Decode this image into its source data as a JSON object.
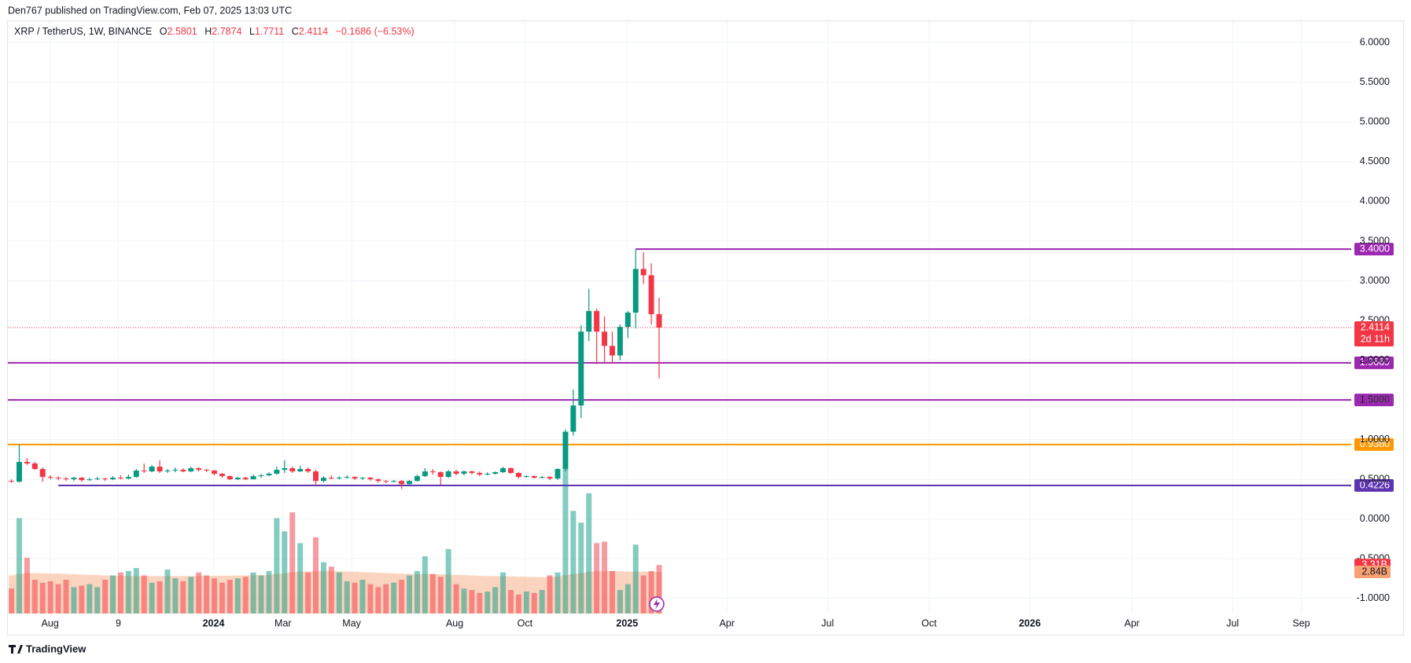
{
  "header": "Den767 published on TradingView.com, Feb 07, 2025 13:03 UTC",
  "brand": "TradingView",
  "chart_data": {
    "type": "candlestick",
    "symbol": "XRP / TetherUS, 1W, BINANCE",
    "ohlc_letters": [
      "O",
      "H",
      "L",
      "C"
    ],
    "change": "−0.1686 (−6.53%)",
    "countdown": "2d 11h",
    "up_color": "#089981",
    "down_color": "#f23645",
    "candles": [
      [
        0.48,
        0.5,
        0.46,
        0.47
      ],
      [
        0.47,
        0.94,
        0.46,
        0.72
      ],
      [
        0.72,
        0.77,
        0.68,
        0.7
      ],
      [
        0.7,
        0.72,
        0.62,
        0.63
      ],
      [
        0.63,
        0.65,
        0.47,
        0.53
      ],
      [
        0.53,
        0.55,
        0.5,
        0.52
      ],
      [
        0.52,
        0.54,
        0.49,
        0.51
      ],
      [
        0.51,
        0.53,
        0.48,
        0.5
      ],
      [
        0.5,
        0.53,
        0.48,
        0.52
      ],
      [
        0.52,
        0.53,
        0.47,
        0.49
      ],
      [
        0.49,
        0.52,
        0.48,
        0.5
      ],
      [
        0.5,
        0.53,
        0.49,
        0.51
      ],
      [
        0.51,
        0.52,
        0.48,
        0.5
      ],
      [
        0.5,
        0.54,
        0.49,
        0.52
      ],
      [
        0.52,
        0.55,
        0.5,
        0.51
      ],
      [
        0.51,
        0.56,
        0.5,
        0.53
      ],
      [
        0.53,
        0.63,
        0.52,
        0.61
      ],
      [
        0.61,
        0.7,
        0.58,
        0.6
      ],
      [
        0.6,
        0.68,
        0.59,
        0.66
      ],
      [
        0.66,
        0.74,
        0.58,
        0.6
      ],
      [
        0.6,
        0.63,
        0.58,
        0.61
      ],
      [
        0.61,
        0.65,
        0.59,
        0.62
      ],
      [
        0.62,
        0.64,
        0.59,
        0.6
      ],
      [
        0.6,
        0.66,
        0.59,
        0.64
      ],
      [
        0.64,
        0.65,
        0.6,
        0.62
      ],
      [
        0.62,
        0.63,
        0.59,
        0.61
      ],
      [
        0.61,
        0.62,
        0.55,
        0.57
      ],
      [
        0.57,
        0.58,
        0.52,
        0.54
      ],
      [
        0.54,
        0.55,
        0.49,
        0.5
      ],
      [
        0.5,
        0.53,
        0.49,
        0.52
      ],
      [
        0.52,
        0.53,
        0.49,
        0.5
      ],
      [
        0.5,
        0.56,
        0.5,
        0.54
      ],
      [
        0.54,
        0.57,
        0.52,
        0.55
      ],
      [
        0.55,
        0.59,
        0.54,
        0.57
      ],
      [
        0.57,
        0.66,
        0.56,
        0.62
      ],
      [
        0.62,
        0.74,
        0.58,
        0.64
      ],
      [
        0.64,
        0.66,
        0.58,
        0.6
      ],
      [
        0.6,
        0.67,
        0.59,
        0.63
      ],
      [
        0.63,
        0.65,
        0.58,
        0.6
      ],
      [
        0.6,
        0.62,
        0.42,
        0.48
      ],
      [
        0.48,
        0.54,
        0.46,
        0.52
      ],
      [
        0.52,
        0.55,
        0.5,
        0.51
      ],
      [
        0.51,
        0.54,
        0.5,
        0.52
      ],
      [
        0.52,
        0.55,
        0.51,
        0.53
      ],
      [
        0.53,
        0.54,
        0.49,
        0.51
      ],
      [
        0.51,
        0.53,
        0.49,
        0.52
      ],
      [
        0.52,
        0.53,
        0.48,
        0.5
      ],
      [
        0.5,
        0.51,
        0.46,
        0.48
      ],
      [
        0.48,
        0.49,
        0.45,
        0.47
      ],
      [
        0.47,
        0.49,
        0.46,
        0.48
      ],
      [
        0.48,
        0.49,
        0.38,
        0.44
      ],
      [
        0.44,
        0.49,
        0.43,
        0.48
      ],
      [
        0.48,
        0.56,
        0.47,
        0.54
      ],
      [
        0.54,
        0.64,
        0.53,
        0.6
      ],
      [
        0.6,
        0.63,
        0.56,
        0.59
      ],
      [
        0.59,
        0.6,
        0.43,
        0.53
      ],
      [
        0.53,
        0.62,
        0.52,
        0.6
      ],
      [
        0.6,
        0.62,
        0.55,
        0.57
      ],
      [
        0.57,
        0.61,
        0.55,
        0.6
      ],
      [
        0.6,
        0.61,
        0.56,
        0.58
      ],
      [
        0.58,
        0.6,
        0.54,
        0.56
      ],
      [
        0.56,
        0.59,
        0.55,
        0.57
      ],
      [
        0.57,
        0.6,
        0.56,
        0.59
      ],
      [
        0.59,
        0.66,
        0.58,
        0.64
      ],
      [
        0.64,
        0.65,
        0.57,
        0.58
      ],
      [
        0.58,
        0.59,
        0.51,
        0.53
      ],
      [
        0.53,
        0.55,
        0.52,
        0.54
      ],
      [
        0.54,
        0.55,
        0.51,
        0.52
      ],
      [
        0.52,
        0.54,
        0.51,
        0.53
      ],
      [
        0.53,
        0.54,
        0.49,
        0.51
      ],
      [
        0.51,
        0.64,
        0.49,
        0.63
      ],
      [
        0.63,
        1.13,
        0.6,
        1.1
      ],
      [
        1.1,
        1.63,
        1.05,
        1.43
      ],
      [
        1.43,
        2.44,
        1.27,
        2.36
      ],
      [
        2.36,
        2.9,
        2.24,
        2.62
      ],
      [
        2.62,
        2.65,
        1.95,
        2.36
      ],
      [
        2.36,
        2.55,
        1.96,
        2.18
      ],
      [
        2.18,
        2.36,
        1.96,
        2.06
      ],
      [
        2.06,
        2.45,
        2.0,
        2.42
      ],
      [
        2.42,
        2.62,
        2.28,
        2.6
      ],
      [
        2.6,
        3.4,
        2.4,
        3.15
      ],
      [
        3.15,
        3.36,
        2.96,
        3.07
      ],
      [
        3.07,
        3.22,
        2.45,
        2.58
      ],
      [
        2.5801,
        2.7874,
        1.7711,
        2.4114
      ]
    ],
    "volume": {
      "values": [
        1.7,
        6.5,
        3.8,
        2.3,
        2.1,
        2.2,
        2.0,
        2.3,
        1.8,
        1.9,
        2.0,
        1.8,
        2.3,
        2.6,
        2.8,
        2.9,
        3.1,
        2.6,
        2.1,
        2.2,
        3.0,
        2.4,
        2.2,
        2.5,
        2.8,
        2.6,
        2.4,
        2.1,
        2.3,
        2.4,
        2.5,
        2.8,
        2.6,
        2.9,
        6.5,
        5.6,
        6.9,
        4.8,
        2.8,
        5.2,
        3.5,
        3.2,
        2.8,
        2.2,
        2.1,
        2.3,
        2.0,
        1.8,
        2.0,
        2.1,
        2.3,
        2.6,
        2.9,
        3.9,
        2.7,
        2.5,
        4.4,
        2.0,
        1.7,
        1.6,
        1.4,
        1.5,
        1.8,
        2.8,
        1.6,
        1.3,
        1.5,
        1.4,
        1.6,
        2.6,
        2.8,
        9.9,
        7.0,
        6.2,
        8.2,
        4.8,
        4.9,
        2.9,
        1.6,
        2.0,
        4.7,
        2.6,
        2.9,
        3.31
      ],
      "value_label": "3.31B"
    },
    "volume_ma": {
      "color": "#f7a072",
      "values": [
        2.6,
        2.7,
        2.75,
        2.75,
        2.74,
        2.73,
        2.72,
        2.7,
        2.68,
        2.66,
        2.64,
        2.62,
        2.6,
        2.58,
        2.57,
        2.56,
        2.56,
        2.55,
        2.55,
        2.55,
        2.55,
        2.55,
        2.55,
        2.56,
        2.56,
        2.57,
        2.57,
        2.58,
        2.58,
        2.59,
        2.6,
        2.61,
        2.62,
        2.63,
        2.7,
        2.75,
        2.82,
        2.85,
        2.86,
        2.9,
        2.9,
        2.9,
        2.88,
        2.86,
        2.84,
        2.82,
        2.8,
        2.78,
        2.76,
        2.74,
        2.72,
        2.7,
        2.69,
        2.69,
        2.68,
        2.68,
        2.66,
        2.64,
        2.62,
        2.6,
        2.58,
        2.56,
        2.55,
        2.55,
        2.53,
        2.51,
        2.5,
        2.49,
        2.48,
        2.5,
        2.52,
        2.62,
        2.7,
        2.76,
        2.84,
        2.88,
        2.9,
        2.9,
        2.88,
        2.86,
        2.86,
        2.85,
        2.84,
        2.84
      ],
      "value_label": "2.84B"
    },
    "vlim": [
      0,
      10.5
    ],
    "levels": [
      {
        "value": 3.4,
        "label": "3.4000",
        "color": "#9c27b0",
        "from": 80
      },
      {
        "value": 1.9669,
        "label": "1.9669",
        "color": "#9c27b0"
      },
      {
        "value": 1.5,
        "label": "1.5000",
        "color": "#9c27b0"
      },
      {
        "value": 0.938,
        "label": "0.9380",
        "color": "#ff9800"
      },
      {
        "value": 0.4226,
        "label": "0.4226",
        "color": "#5e35b1",
        "from": 6
      }
    ],
    "xlim": [
      -0.46,
      171.7
    ],
    "ylim": [
      -1.19,
      6.27
    ],
    "xticks": [
      {
        "value": 4.95,
        "label": "Aug"
      },
      {
        "value": 13.7,
        "label": "9"
      },
      {
        "value": 25.9,
        "label": "2024"
      },
      {
        "value": 34.8,
        "label": "Mar"
      },
      {
        "value": 43.6,
        "label": "May"
      },
      {
        "value": 56.8,
        "label": "Aug"
      },
      {
        "value": 65.8,
        "label": "Oct"
      },
      {
        "value": 78.9,
        "label": "2025"
      },
      {
        "value": 91.7,
        "label": "Apr"
      },
      {
        "value": 104.6,
        "label": "Jul"
      },
      {
        "value": 117.6,
        "label": "Oct"
      },
      {
        "value": 130.5,
        "label": "2026"
      },
      {
        "value": 143.6,
        "label": "Apr"
      },
      {
        "value": 156.5,
        "label": "Jul"
      },
      {
        "value": 165.3,
        "label": "Sep"
      }
    ],
    "yticks": [
      {
        "value": 6,
        "label": "6.0000"
      },
      {
        "value": 5.5,
        "label": "5.5000"
      },
      {
        "value": 5,
        "label": "5.0000"
      },
      {
        "value": 4.5,
        "label": "4.5000"
      },
      {
        "value": 4,
        "label": "4.0000"
      },
      {
        "value": 3.5,
        "label": "3.5000"
      },
      {
        "value": 3,
        "label": "3.0000"
      },
      {
        "value": 2.5,
        "label": "2.5000"
      },
      {
        "value": 2,
        "label": "2.0000"
      },
      {
        "value": 1.5,
        "label": "1.5000"
      },
      {
        "value": 1,
        "label": "1.0000"
      },
      {
        "value": 0.5,
        "label": "0.5000"
      },
      {
        "value": 0,
        "label": "0.0000"
      },
      {
        "value": -0.5,
        "label": "-0.5000"
      },
      {
        "value": -1,
        "label": "-1.0000"
      }
    ],
    "grid": true
  }
}
